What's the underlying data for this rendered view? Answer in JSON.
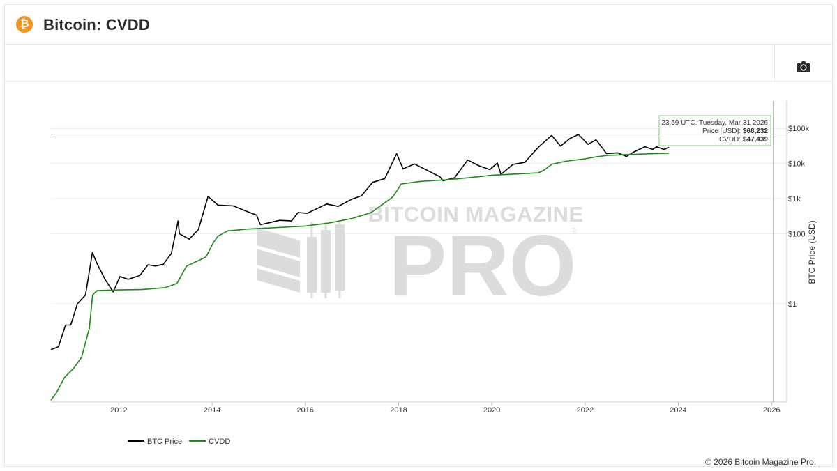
{
  "header": {
    "title": "Bitcoin: CVDD",
    "logo_glyph": "₿",
    "logo_color": "#f7931a"
  },
  "toolbar": {
    "screenshot_icon": "camera-icon"
  },
  "watermark": {
    "line1": "BITCOIN MAGAZINE",
    "line2": "PRO",
    "registered": "®"
  },
  "tooltip": {
    "date": "23:59 UTC, Tuesday, Mar 31 2026",
    "price_label": "Price [USD]: ",
    "price_value": "$68,232",
    "cvdd_label": "CVDD: ",
    "cvdd_value": "$47,439"
  },
  "footer": {
    "copyright": "© 2026 Bitcoin Magazine Pro."
  },
  "chart_data": {
    "type": "line",
    "title": "",
    "xlabel": "",
    "ylabel": "BTC Price (USD)",
    "y_scale": "log",
    "xlim": [
      "2010-07-18",
      "2026-04-30"
    ],
    "ylim": [
      0.0016,
      600000
    ],
    "x_ticks": [
      "2012",
      "2014",
      "2016",
      "2018",
      "2020",
      "2022",
      "2024",
      "2026"
    ],
    "y_ticks": [
      {
        "value": 1,
        "label": "$1"
      },
      {
        "value": 100,
        "label": "$100"
      },
      {
        "value": 1000,
        "label": "$1k"
      },
      {
        "value": 10000,
        "label": "$10k"
      },
      {
        "value": 100000,
        "label": "$100k"
      }
    ],
    "legend_position": "bottom-left",
    "crosshair": {
      "date": "2026-03-31",
      "price": 68232,
      "cvdd": 47439
    },
    "series": [
      {
        "name": "BTC Price",
        "color": "#000000",
        "points": [
          [
            "2010-07-18",
            0.05
          ],
          [
            "2010-09-15",
            0.06
          ],
          [
            "2010-11-10",
            0.25
          ],
          [
            "2010-12-20",
            0.25
          ],
          [
            "2011-02-10",
            1.0
          ],
          [
            "2011-04-15",
            1.8
          ],
          [
            "2011-06-08",
            29
          ],
          [
            "2011-07-15",
            14
          ],
          [
            "2011-09-15",
            5
          ],
          [
            "2011-11-18",
            2.2
          ],
          [
            "2012-01-10",
            6
          ],
          [
            "2012-03-15",
            5
          ],
          [
            "2012-06-15",
            6.5
          ],
          [
            "2012-08-16",
            13
          ],
          [
            "2012-10-15",
            12
          ],
          [
            "2012-12-15",
            13.5
          ],
          [
            "2013-02-15",
            27
          ],
          [
            "2013-04-09",
            230
          ],
          [
            "2013-04-20",
            100
          ],
          [
            "2013-07-05",
            70
          ],
          [
            "2013-09-15",
            130
          ],
          [
            "2013-11-30",
            1150
          ],
          [
            "2014-02-15",
            650
          ],
          [
            "2014-06-15",
            620
          ],
          [
            "2014-09-15",
            450
          ],
          [
            "2014-12-15",
            340
          ],
          [
            "2015-01-14",
            180
          ],
          [
            "2015-06-15",
            240
          ],
          [
            "2015-09-15",
            230
          ],
          [
            "2015-11-05",
            400
          ],
          [
            "2016-01-15",
            380
          ],
          [
            "2016-06-16",
            700
          ],
          [
            "2016-09-15",
            600
          ],
          [
            "2016-12-30",
            960
          ],
          [
            "2017-03-15",
            1200
          ],
          [
            "2017-06-12",
            2900
          ],
          [
            "2017-09-15",
            3700
          ],
          [
            "2017-12-17",
            19000
          ],
          [
            "2018-02-05",
            7000
          ],
          [
            "2018-05-05",
            9700
          ],
          [
            "2018-08-15",
            6300
          ],
          [
            "2018-11-20",
            4200
          ],
          [
            "2018-12-15",
            3200
          ],
          [
            "2019-03-15",
            3900
          ],
          [
            "2019-06-26",
            12500
          ],
          [
            "2019-09-25",
            8500
          ],
          [
            "2019-12-17",
            6700
          ],
          [
            "2020-02-14",
            10300
          ],
          [
            "2020-03-13",
            4900
          ],
          [
            "2020-06-15",
            9400
          ],
          [
            "2020-09-15",
            10700
          ],
          [
            "2020-12-31",
            29000
          ],
          [
            "2021-04-14",
            63000
          ],
          [
            "2021-06-22",
            31000
          ],
          [
            "2021-09-07",
            52000
          ],
          [
            "2021-11-10",
            67000
          ],
          [
            "2022-01-24",
            35000
          ],
          [
            "2022-03-28",
            47000
          ],
          [
            "2022-06-18",
            19000
          ],
          [
            "2022-09-15",
            20000
          ],
          [
            "2022-11-21",
            15800
          ],
          [
            "2023-01-15",
            21000
          ],
          [
            "2023-04-15",
            30000
          ],
          [
            "2023-06-15",
            25000
          ],
          [
            "2023-07-15",
            30000
          ],
          [
            "2023-09-11",
            25000
          ],
          [
            "2023-10-20",
            29000
          ]
        ]
      },
      {
        "name": "CVDD",
        "color": "#1a8a1a",
        "points": [
          [
            "2010-07-18",
            0.0018
          ],
          [
            "2010-09-01",
            0.003
          ],
          [
            "2010-11-01",
            0.008
          ],
          [
            "2011-01-15",
            0.015
          ],
          [
            "2011-03-15",
            0.03
          ],
          [
            "2011-05-15",
            0.2
          ],
          [
            "2011-06-10",
            1.8
          ],
          [
            "2011-07-15",
            2.4
          ],
          [
            "2011-12-31",
            2.5
          ],
          [
            "2012-06-30",
            2.55
          ],
          [
            "2012-12-31",
            2.9
          ],
          [
            "2013-03-31",
            3.8
          ],
          [
            "2013-06-15",
            12
          ],
          [
            "2013-09-30",
            18
          ],
          [
            "2013-11-15",
            22
          ],
          [
            "2014-01-10",
            55
          ],
          [
            "2014-02-15",
            85
          ],
          [
            "2014-05-01",
            120
          ],
          [
            "2014-10-01",
            135
          ],
          [
            "2015-06-01",
            150
          ],
          [
            "2015-12-31",
            165
          ],
          [
            "2016-06-30",
            200
          ],
          [
            "2016-12-31",
            270
          ],
          [
            "2017-06-01",
            400
          ],
          [
            "2017-09-01",
            700
          ],
          [
            "2017-11-15",
            1100
          ],
          [
            "2017-12-20",
            1700
          ],
          [
            "2018-01-20",
            2600
          ],
          [
            "2018-06-30",
            3100
          ],
          [
            "2018-12-31",
            3400
          ],
          [
            "2019-06-30",
            3900
          ],
          [
            "2019-12-31",
            4600
          ],
          [
            "2020-06-30",
            5000
          ],
          [
            "2020-12-31",
            5400
          ],
          [
            "2021-02-15",
            6500
          ],
          [
            "2021-04-15",
            9500
          ],
          [
            "2021-07-31",
            11500
          ],
          [
            "2021-12-31",
            13500
          ],
          [
            "2022-03-31",
            15500
          ],
          [
            "2022-06-30",
            17000
          ],
          [
            "2022-12-31",
            18000
          ],
          [
            "2023-06-30",
            19000
          ],
          [
            "2023-10-20",
            19500
          ]
        ]
      }
    ]
  }
}
